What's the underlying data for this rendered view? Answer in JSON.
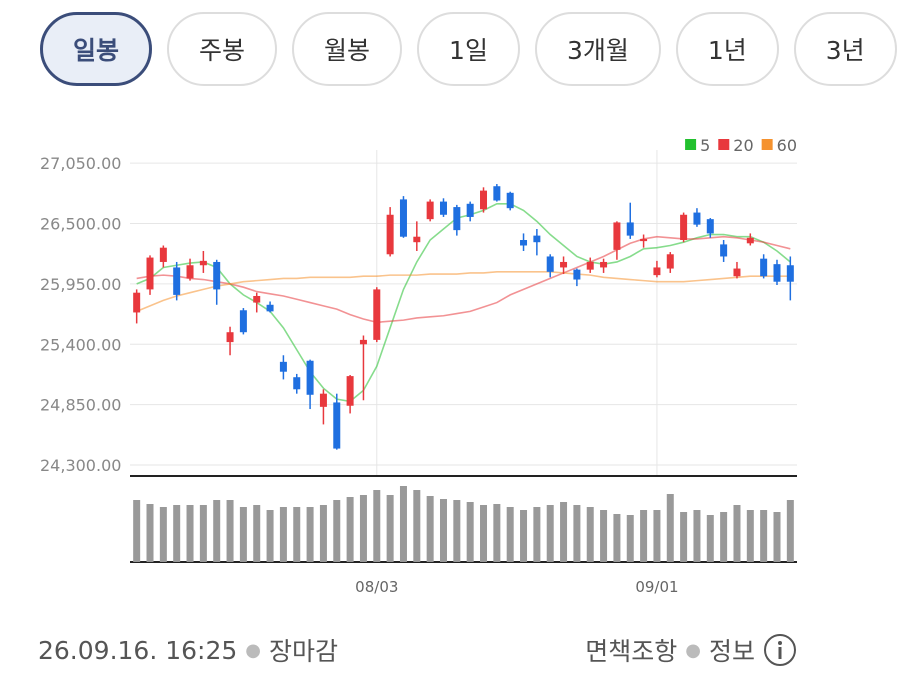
{
  "tabs": [
    "일봉",
    "주봉",
    "월봉",
    "1일",
    "3개월",
    "1년",
    "3년"
  ],
  "chart_data": {
    "type": "candlestick",
    "categories": [
      null,
      null,
      null,
      null,
      null,
      null,
      null,
      null,
      null,
      null,
      null,
      null,
      null,
      null,
      null,
      null,
      null,
      null,
      "08/03",
      null,
      null,
      null,
      null,
      null,
      null,
      null,
      null,
      null,
      null,
      null,
      null,
      null,
      null,
      null,
      null,
      null,
      null,
      null,
      null,
      "09/01",
      null,
      null,
      null,
      null,
      null,
      null,
      null,
      null,
      null,
      null
    ],
    "open": [
      25690,
      25900,
      26150,
      26100,
      26000,
      26120,
      26150,
      25420,
      25710,
      25780,
      25760,
      25240,
      25100,
      25250,
      24830,
      24870,
      24840,
      25400,
      25440,
      26220,
      26720,
      26330,
      26540,
      26700,
      26650,
      26680,
      26630,
      26840,
      26780,
      26350,
      26390,
      26200,
      26100,
      26080,
      26080,
      26100,
      26260,
      26510,
      26340,
      26030,
      26090,
      26350,
      26600,
      26540,
      26310,
      26020,
      26320,
      26180,
      26130,
      26120
    ],
    "high": [
      25900,
      26210,
      26300,
      26150,
      26180,
      26250,
      26170,
      25560,
      25730,
      25870,
      25790,
      25300,
      25130,
      25260,
      24990,
      24950,
      25120,
      25480,
      25920,
      26650,
      26750,
      26520,
      26720,
      26730,
      26670,
      26700,
      26830,
      26860,
      26790,
      26410,
      26450,
      26220,
      26200,
      26090,
      26190,
      26180,
      26520,
      26690,
      26400,
      26160,
      26240,
      26600,
      26640,
      26550,
      26350,
      26150,
      26410,
      26220,
      26170,
      26200
    ],
    "low": [
      25590,
      25850,
      26100,
      25800,
      25980,
      26050,
      25760,
      25300,
      25490,
      25690,
      25690,
      25080,
      24950,
      24810,
      24670,
      24440,
      24770,
      24890,
      25420,
      26200,
      26370,
      26250,
      26520,
      26560,
      26390,
      26520,
      26600,
      26700,
      26620,
      26250,
      26210,
      26010,
      26040,
      25930,
      26050,
      26050,
      26170,
      26360,
      26280,
      26010,
      26050,
      26330,
      26470,
      26370,
      26150,
      26000,
      26300,
      26000,
      25940,
      25800
    ],
    "close": [
      25870,
      26190,
      26280,
      25850,
      26120,
      26160,
      25900,
      25510,
      25510,
      25840,
      25700,
      25150,
      24990,
      24940,
      24950,
      24450,
      25110,
      25440,
      25900,
      26580,
      26380,
      26380,
      26700,
      26580,
      26440,
      26560,
      26800,
      26710,
      26640,
      26300,
      26330,
      26060,
      26150,
      25990,
      26150,
      26150,
      26510,
      26390,
      26360,
      26100,
      26220,
      26580,
      26490,
      26410,
      26200,
      26090,
      26370,
      26020,
      25970,
      25970
    ],
    "up_color": "#e8383d",
    "down_color": "#1f6fe0",
    "ylim": [
      24200,
      27170
    ],
    "yticks": [
      {
        "value": 27050,
        "label": "27,050.00"
      },
      {
        "value": 26500,
        "label": "26,500.00"
      },
      {
        "value": 25950,
        "label": "25,950.00"
      },
      {
        "value": 25400,
        "label": "25,400.00"
      },
      {
        "value": 24850,
        "label": "24,850.00"
      },
      {
        "value": 24300,
        "label": "24,300.00"
      }
    ],
    "grid": true,
    "moving_averages": [
      {
        "name": "5",
        "color": "#22c02e",
        "values": [
          25950,
          26000,
          26100,
          26120,
          26140,
          26150,
          26100,
          25950,
          25850,
          25780,
          25700,
          25550,
          25350,
          25150,
          25000,
          24900,
          24880,
          24980,
          25200,
          25550,
          25900,
          26150,
          26350,
          26450,
          26550,
          26580,
          26620,
          26680,
          26680,
          26620,
          26520,
          26400,
          26300,
          26200,
          26150,
          26130,
          26150,
          26200,
          26270,
          26280,
          26300,
          26330,
          26370,
          26400,
          26400,
          26380,
          26380,
          26330,
          26250,
          26150
        ]
      },
      {
        "name": "20",
        "color": "#e8383d",
        "values": [
          26000,
          26020,
          26030,
          26020,
          26000,
          25990,
          25970,
          25950,
          25920,
          25880,
          25860,
          25840,
          25810,
          25780,
          25750,
          25720,
          25670,
          25630,
          25600,
          25610,
          25620,
          25640,
          25650,
          25660,
          25680,
          25700,
          25740,
          25780,
          25850,
          25900,
          25950,
          26000,
          26050,
          26100,
          26150,
          26200,
          26260,
          26320,
          26360,
          26380,
          26370,
          26360,
          26360,
          26370,
          26380,
          26370,
          26350,
          26330,
          26300,
          26270
        ]
      },
      {
        "name": "60",
        "color": "#f5922e",
        "values": [
          25700,
          25750,
          25800,
          25840,
          25870,
          25900,
          25930,
          25950,
          25970,
          25980,
          25990,
          26000,
          26000,
          26010,
          26010,
          26010,
          26010,
          26020,
          26020,
          26030,
          26030,
          26030,
          26040,
          26040,
          26040,
          26050,
          26050,
          26060,
          26060,
          26060,
          26060,
          26060,
          26050,
          26040,
          26030,
          26010,
          26000,
          25990,
          25980,
          25970,
          25970,
          25970,
          25980,
          25990,
          26000,
          26010,
          26020,
          26020,
          26020,
          26020
        ]
      }
    ],
    "volume": {
      "color": "#999999",
      "ylim": [
        0,
        80
      ],
      "values": [
        62,
        58,
        55,
        57,
        57,
        57,
        62,
        62,
        55,
        57,
        52,
        55,
        55,
        55,
        57,
        62,
        65,
        67,
        72,
        67,
        76,
        72,
        66,
        63,
        62,
        60,
        57,
        58,
        55,
        52,
        55,
        57,
        60,
        57,
        55,
        52,
        48,
        47,
        52,
        52,
        68,
        50,
        52,
        47,
        50,
        57,
        52,
        52,
        50,
        62
      ]
    }
  },
  "footer": {
    "timestamp": "26.09.16. 16:25",
    "status": "장마감",
    "disclaimer": "면책조항",
    "info": "정보"
  }
}
